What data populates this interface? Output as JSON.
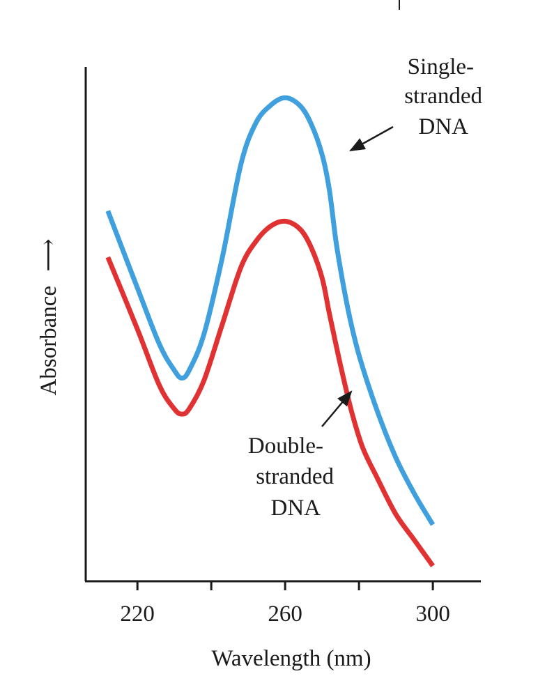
{
  "chart_data": {
    "type": "line",
    "xlabel": "Wavelength (nm)",
    "ylabel": "Absorbance",
    "ylabel_arrow": "⟶",
    "xlim": [
      206,
      313
    ],
    "ylim": [
      0,
      1
    ],
    "xticks": [
      220,
      240,
      260,
      280,
      300
    ],
    "xtick_labels": [
      "220",
      "",
      "260",
      "",
      "300"
    ],
    "grid": false,
    "legend": "none",
    "series": [
      {
        "color": "#3fa0dd",
        "points": [
          [
            212,
            0.72
          ],
          [
            220,
            0.57
          ],
          [
            226,
            0.46
          ],
          [
            230,
            0.41
          ],
          [
            232,
            0.395
          ],
          [
            234,
            0.41
          ],
          [
            238,
            0.48
          ],
          [
            243,
            0.63
          ],
          [
            248,
            0.81
          ],
          [
            252,
            0.89
          ],
          [
            256,
            0.925
          ],
          [
            260,
            0.94
          ],
          [
            264,
            0.925
          ],
          [
            267,
            0.89
          ],
          [
            270,
            0.83
          ],
          [
            272,
            0.76
          ],
          [
            274,
            0.65
          ],
          [
            277,
            0.53
          ],
          [
            280,
            0.44
          ],
          [
            285,
            0.33
          ],
          [
            290,
            0.24
          ],
          [
            295,
            0.17
          ],
          [
            300,
            0.11
          ]
        ]
      },
      {
        "color": "#e03232",
        "points": [
          [
            212,
            0.63
          ],
          [
            220,
            0.49
          ],
          [
            226,
            0.38
          ],
          [
            230,
            0.335
          ],
          [
            232,
            0.325
          ],
          [
            234,
            0.335
          ],
          [
            238,
            0.39
          ],
          [
            243,
            0.5
          ],
          [
            248,
            0.61
          ],
          [
            252,
            0.66
          ],
          [
            256,
            0.69
          ],
          [
            260,
            0.7
          ],
          [
            264,
            0.685
          ],
          [
            267,
            0.65
          ],
          [
            270,
            0.59
          ],
          [
            272,
            0.52
          ],
          [
            275,
            0.42
          ],
          [
            278,
            0.33
          ],
          [
            281,
            0.26
          ],
          [
            285,
            0.2
          ],
          [
            290,
            0.13
          ],
          [
            295,
            0.08
          ],
          [
            300,
            0.03
          ]
        ]
      }
    ],
    "annotations": [
      {
        "lines": [
          "Single-",
          "stranded",
          "DNA"
        ]
      },
      {
        "lines": [
          "Double-",
          "stranded",
          "DNA"
        ]
      }
    ]
  }
}
